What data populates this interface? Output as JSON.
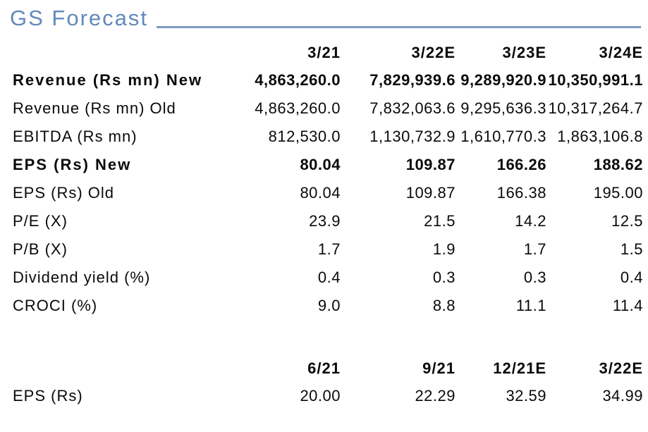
{
  "title": "GS Forecast",
  "colors": {
    "title_blue": "#6189BC",
    "rule_blue": "#7C99C4",
    "text": "#0a0a0a",
    "background": "#ffffff"
  },
  "annual_table": {
    "headers": [
      "3/21",
      "3/22E",
      "3/23E",
      "3/24E"
    ],
    "rows": [
      {
        "label": "Revenue (Rs mn) New",
        "emphasis": "bold",
        "values": [
          "4,863,260.0",
          "7,829,939.6",
          "9,289,920.9",
          "10,350,991.1"
        ]
      },
      {
        "label": "Revenue (Rs mn) Old",
        "emphasis": "normal",
        "values": [
          "4,863,260.0",
          "7,832,063.6",
          "9,295,636.3",
          "10,317,264.7"
        ]
      },
      {
        "label": "EBITDA (Rs mn)",
        "emphasis": "normal",
        "values": [
          "812,530.0",
          "1,130,732.9",
          "1,610,770.3",
          "1,863,106.8"
        ]
      },
      {
        "label": "EPS (Rs) New",
        "emphasis": "bold",
        "values": [
          "80.04",
          "109.87",
          "166.26",
          "188.62"
        ]
      },
      {
        "label": "EPS (Rs) Old",
        "emphasis": "normal",
        "values": [
          "80.04",
          "109.87",
          "166.38",
          "195.00"
        ]
      },
      {
        "label": "P/E (X)",
        "emphasis": "normal",
        "values": [
          "23.9",
          "21.5",
          "14.2",
          "12.5"
        ]
      },
      {
        "label": "P/B (X)",
        "emphasis": "normal",
        "values": [
          "1.7",
          "1.9",
          "1.7",
          "1.5"
        ]
      },
      {
        "label": "Dividend yield (%)",
        "emphasis": "normal",
        "values": [
          "0.4",
          "0.3",
          "0.3",
          "0.4"
        ]
      },
      {
        "label": "CROCI (%)",
        "emphasis": "normal",
        "values": [
          "9.0",
          "8.8",
          "11.1",
          "11.4"
        ]
      }
    ]
  },
  "quarterly_table": {
    "headers": [
      "6/21",
      "9/21",
      "12/21E",
      "3/22E"
    ],
    "rows": [
      {
        "label": "EPS (Rs)",
        "emphasis": "normal",
        "values": [
          "20.00",
          "22.29",
          "32.59",
          "34.99"
        ]
      }
    ]
  }
}
